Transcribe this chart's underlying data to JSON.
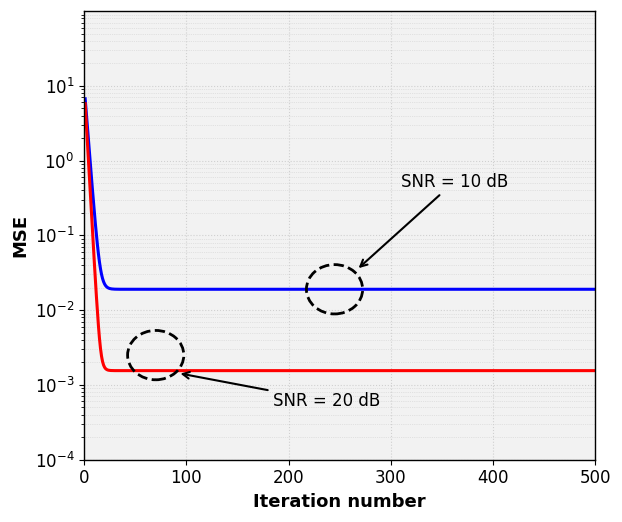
{
  "title": "",
  "xlabel": "Iteration number",
  "ylabel": "MSE",
  "xlim": [
    1,
    500
  ],
  "ylim_log": [
    -4,
    2
  ],
  "snr10_converge": 0.019,
  "snr20_converge": 0.00155,
  "line_color_10dB": "#0000FF",
  "line_color_20dB": "#FF0000",
  "annotation_10dB": "SNR = 10 dB",
  "annotation_20dB": "SNR = 20 dB",
  "grid_color": "#d0d0d0",
  "background_color": "#f2f2f2"
}
